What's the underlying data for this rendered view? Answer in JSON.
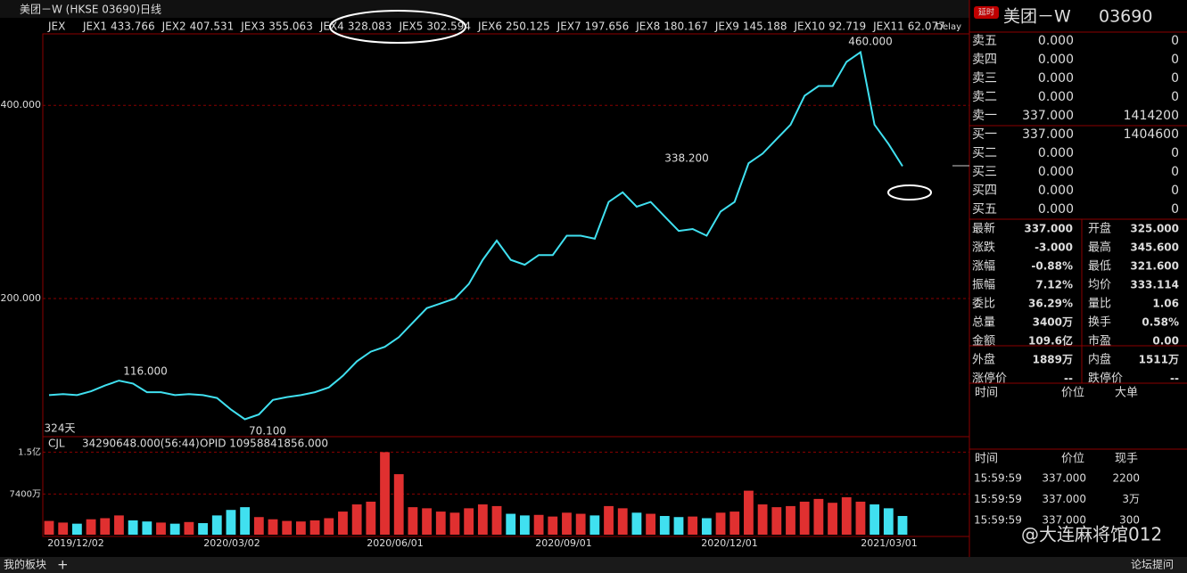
{
  "header": {
    "title": "美团－W (HKSE 03690)",
    "period": "日线"
  },
  "indicators": {
    "prefix": "JEX",
    "delay": "Delay",
    "items": [
      {
        "name": "JEX1",
        "value": "433.766",
        "color": "#ffffff"
      },
      {
        "name": "JEX2",
        "value": "407.531",
        "color": "#ff3030"
      },
      {
        "name": "JEX3",
        "value": "355.063",
        "color": "#30ff30"
      },
      {
        "name": "JEX4",
        "value": "328.083",
        "color": "#3030ff"
      },
      {
        "name": "JEX5",
        "value": "302.594",
        "color": "#ffff50"
      },
      {
        "name": "JEX6",
        "value": "250.125",
        "color": "#a0a0a0"
      },
      {
        "name": "JEX7",
        "value": "197.656",
        "color": "#ffff50"
      },
      {
        "name": "JEX8",
        "value": "180.167",
        "color": "#3030ff"
      },
      {
        "name": "JEX9",
        "value": "145.188",
        "color": "#30ff30"
      },
      {
        "name": "JEX10",
        "value": "92.719",
        "color": "#ff3030"
      },
      {
        "name": "JEX11",
        "value": "62.077",
        "color": "#ffffff"
      }
    ]
  },
  "price_chart": {
    "ylim": [
      57,
      474
    ],
    "yticks": [
      {
        "value": 400,
        "label": "400.000"
      },
      {
        "value": 200,
        "label": "200.000"
      }
    ],
    "closes": [
      100,
      101,
      100,
      104,
      110,
      115,
      112,
      103,
      103,
      100,
      101,
      100,
      97,
      85,
      75,
      80,
      95,
      98,
      100,
      103,
      108,
      120,
      135,
      145,
      150,
      160,
      175,
      190,
      195,
      200,
      215,
      240,
      260,
      240,
      235,
      245,
      245,
      265,
      265,
      262,
      300,
      310,
      295,
      300,
      285,
      270,
      272,
      265,
      290,
      300,
      340,
      350,
      365,
      380,
      410,
      420,
      420,
      445,
      455,
      380,
      360,
      337
    ],
    "color": "#40e0f0",
    "annotations": [
      "460.000",
      "338.200",
      "116.000",
      "70.100",
      "324天"
    ],
    "x_labels": [
      "2019/12/02",
      "2020/03/02",
      "2020/06/01",
      "2020/09/01",
      "2020/12/01",
      "2021/03/01"
    ]
  },
  "volume_chart": {
    "name": "CJL",
    "value": "34290648.000(56:44)",
    "opid": "OPID 10958841856.000",
    "ylim": [
      0,
      16200
    ],
    "yticks": [
      {
        "value": 15000,
        "label": "1.5亿"
      },
      {
        "value": 7400,
        "label": "7400万"
      }
    ],
    "values": [
      2500,
      2200,
      2000,
      2800,
      3000,
      3500,
      2600,
      2400,
      2200,
      2000,
      2300,
      2100,
      3500,
      4500,
      5000,
      3200,
      2800,
      2500,
      2400,
      2600,
      3000,
      4200,
      5500,
      6000,
      15000,
      11000,
      5000,
      4800,
      4200,
      4000,
      4800,
      5500,
      5200,
      3800,
      3500,
      3600,
      3300,
      4000,
      3800,
      3500,
      5200,
      4800,
      4000,
      3800,
      3400,
      3200,
      3300,
      3000,
      4000,
      4200,
      8000,
      5500,
      5000,
      5200,
      6000,
      6500,
      5800,
      6800,
      6000,
      5500,
      4800,
      3400
    ]
  },
  "quote": {
    "badge": "延时",
    "name": "美团－W",
    "code": "03690"
  },
  "order_book": [
    [
      "卖五",
      "0.000",
      "0"
    ],
    [
      "卖四",
      "0.000",
      "0"
    ],
    [
      "卖三",
      "0.000",
      "0"
    ],
    [
      "卖二",
      "0.000",
      "0"
    ],
    [
      "卖一",
      "337.000",
      "1414200"
    ],
    [
      "买一",
      "337.000",
      "1404600"
    ],
    [
      "买二",
      "0.000",
      "0"
    ],
    [
      "买三",
      "0.000",
      "0"
    ],
    [
      "买四",
      "0.000",
      "0"
    ],
    [
      "买五",
      "0.000",
      "0"
    ]
  ],
  "stats": [
    [
      "最新",
      "337.000",
      "开盘",
      "325.000"
    ],
    [
      "涨跌",
      "-3.000",
      "最高",
      "345.600"
    ],
    [
      "涨幅",
      "-0.88%",
      "最低",
      "321.600"
    ],
    [
      "振幅",
      "7.12%",
      "均价",
      "333.114"
    ],
    [
      "委比",
      "36.29%",
      "量比",
      "1.06"
    ],
    [
      "总量",
      "3400万",
      "换手",
      "0.58%"
    ],
    [
      "金额",
      "109.6亿",
      "市盈",
      "0.00"
    ],
    [
      "外盘",
      "1889万",
      "内盘",
      "1511万"
    ],
    [
      "涨停价",
      "--",
      "跌停价",
      "--"
    ]
  ],
  "big_orders_header": [
    "时间",
    "价位",
    "大单"
  ],
  "trades_header": [
    "时间",
    "价位",
    "现手"
  ],
  "trades": [
    [
      "15:59:59",
      "337.000",
      "2200"
    ],
    [
      "15:59:59",
      "337.000",
      "3万"
    ],
    [
      "15:59:59",
      "337.000",
      "300"
    ]
  ],
  "footer": {
    "tab": "我的板块",
    "add": "+",
    "watermark": "@大连麻将馆012",
    "forum": "论坛提问"
  }
}
